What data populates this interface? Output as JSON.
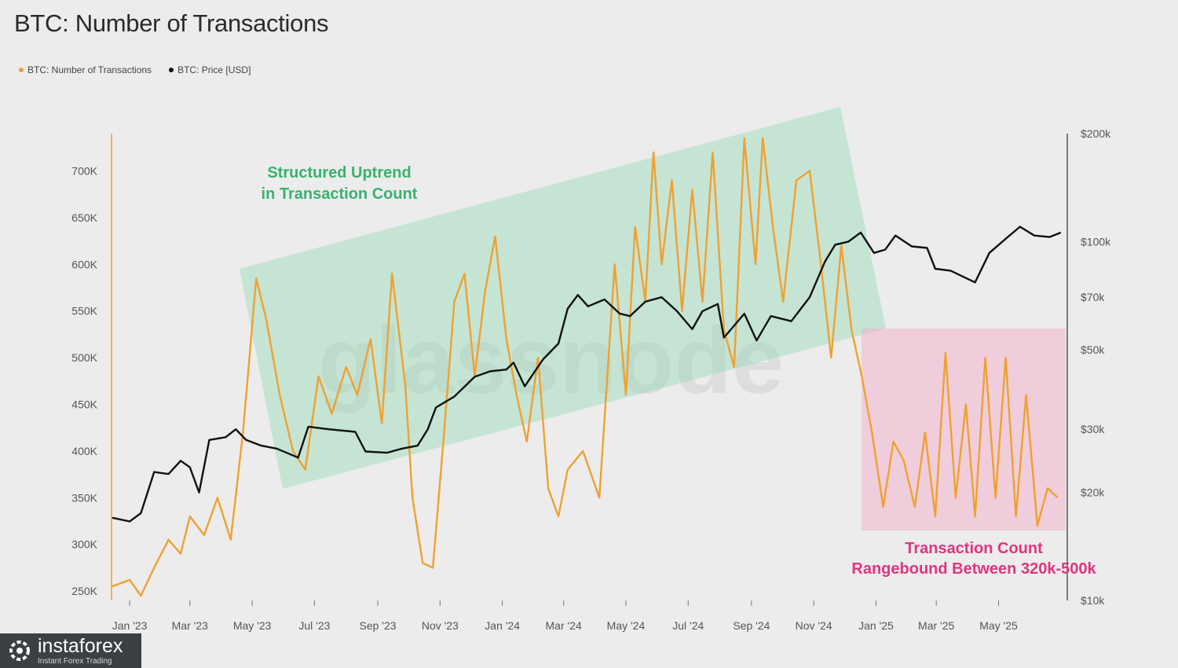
{
  "title": "BTC: Number of Transactions",
  "legend": [
    {
      "label": "BTC: Number of Transactions",
      "color": "#f0a030"
    },
    {
      "label": "BTC: Price [USD]",
      "color": "#111111"
    }
  ],
  "watermark": "glassnode",
  "brand": {
    "name": "instaforex",
    "tagline": "Instant Forex Trading",
    "icon": "gear-logo-icon"
  },
  "annotations": {
    "uptrend": [
      "Structured Uptrend",
      "in Transaction Count"
    ],
    "range": [
      "Transaction Count",
      "Rangebound Between 320k-500k"
    ]
  },
  "chart_data": {
    "type": "line",
    "x_ticks": [
      "Jan '23",
      "Mar '23",
      "May '23",
      "Jul '23",
      "Sep '23",
      "Nov '23",
      "Jan '24",
      "Mar '24",
      "May '24",
      "Jul '24",
      "Sep '24",
      "Nov '24",
      "Jan '25",
      "Mar '25",
      "May '25"
    ],
    "x_range": [
      "2022-12-15",
      "2025-07-05"
    ],
    "left_axis": {
      "ticks": [
        "250K",
        "300K",
        "350K",
        "400K",
        "450K",
        "500K",
        "550K",
        "600K",
        "650K",
        "700K"
      ],
      "range": [
        240000,
        740000
      ]
    },
    "right_axis": {
      "scale": "log",
      "ticks": [
        "$10k",
        "$20k",
        "$30k",
        "$50k",
        "$70k",
        "$100k",
        "$200k"
      ],
      "range": [
        10000,
        200000
      ]
    },
    "series": [
      {
        "name": "BTC: Number of Transactions",
        "color": "#f0a030",
        "points": [
          [
            "2022-12-15",
            255000
          ],
          [
            "2023-01-01",
            262000
          ],
          [
            "2023-01-12",
            245000
          ],
          [
            "2023-01-25",
            275000
          ],
          [
            "2023-02-08",
            305000
          ],
          [
            "2023-02-20",
            290000
          ],
          [
            "2023-03-01",
            330000
          ],
          [
            "2023-03-15",
            310000
          ],
          [
            "2023-03-28",
            350000
          ],
          [
            "2023-04-10",
            305000
          ],
          [
            "2023-04-22",
            420000
          ],
          [
            "2023-05-05",
            585000
          ],
          [
            "2023-05-15",
            540000
          ],
          [
            "2023-05-28",
            460000
          ],
          [
            "2023-06-10",
            400000
          ],
          [
            "2023-06-22",
            380000
          ],
          [
            "2023-07-05",
            480000
          ],
          [
            "2023-07-18",
            440000
          ],
          [
            "2023-08-01",
            490000
          ],
          [
            "2023-08-12",
            460000
          ],
          [
            "2023-08-25",
            520000
          ],
          [
            "2023-09-05",
            430000
          ],
          [
            "2023-09-15",
            590000
          ],
          [
            "2023-09-28",
            470000
          ],
          [
            "2023-10-05",
            350000
          ],
          [
            "2023-10-15",
            280000
          ],
          [
            "2023-10-25",
            275000
          ],
          [
            "2023-11-05",
            420000
          ],
          [
            "2023-11-15",
            560000
          ],
          [
            "2023-11-25",
            590000
          ],
          [
            "2023-12-05",
            480000
          ],
          [
            "2023-12-15",
            570000
          ],
          [
            "2023-12-25",
            630000
          ],
          [
            "2024-01-05",
            520000
          ],
          [
            "2024-01-15",
            460000
          ],
          [
            "2024-01-25",
            410000
          ],
          [
            "2024-02-05",
            500000
          ],
          [
            "2024-02-15",
            360000
          ],
          [
            "2024-02-25",
            330000
          ],
          [
            "2024-03-05",
            380000
          ],
          [
            "2024-03-20",
            400000
          ],
          [
            "2024-04-05",
            350000
          ],
          [
            "2024-04-20",
            600000
          ],
          [
            "2024-05-01",
            460000
          ],
          [
            "2024-05-10",
            640000
          ],
          [
            "2024-05-20",
            560000
          ],
          [
            "2024-05-28",
            720000
          ],
          [
            "2024-06-05",
            600000
          ],
          [
            "2024-06-15",
            690000
          ],
          [
            "2024-06-25",
            550000
          ],
          [
            "2024-07-05",
            680000
          ],
          [
            "2024-07-15",
            560000
          ],
          [
            "2024-07-25",
            720000
          ],
          [
            "2024-08-05",
            530000
          ],
          [
            "2024-08-15",
            490000
          ],
          [
            "2024-08-25",
            735000
          ],
          [
            "2024-09-05",
            600000
          ],
          [
            "2024-09-12",
            735000
          ],
          [
            "2024-09-22",
            640000
          ],
          [
            "2024-10-02",
            560000
          ],
          [
            "2024-10-15",
            690000
          ],
          [
            "2024-10-28",
            700000
          ],
          [
            "2024-11-08",
            600000
          ],
          [
            "2024-11-18",
            500000
          ],
          [
            "2024-11-28",
            620000
          ],
          [
            "2024-12-08",
            530000
          ],
          [
            "2024-12-18",
            480000
          ],
          [
            "2024-12-28",
            420000
          ],
          [
            "2025-01-08",
            340000
          ],
          [
            "2025-01-18",
            410000
          ],
          [
            "2025-01-28",
            390000
          ],
          [
            "2025-02-08",
            340000
          ],
          [
            "2025-02-18",
            420000
          ],
          [
            "2025-02-28",
            330000
          ],
          [
            "2025-03-10",
            505000
          ],
          [
            "2025-03-20",
            350000
          ],
          [
            "2025-03-30",
            450000
          ],
          [
            "2025-04-08",
            330000
          ],
          [
            "2025-04-18",
            500000
          ],
          [
            "2025-04-28",
            350000
          ],
          [
            "2025-05-08",
            500000
          ],
          [
            "2025-05-18",
            330000
          ],
          [
            "2025-05-28",
            460000
          ],
          [
            "2025-06-08",
            320000
          ],
          [
            "2025-06-18",
            360000
          ],
          [
            "2025-06-28",
            350000
          ]
        ]
      },
      {
        "name": "BTC: Price [USD]",
        "color": "#111111",
        "points": [
          [
            "2022-12-15",
            17000
          ],
          [
            "2023-01-01",
            16600
          ],
          [
            "2023-01-12",
            17500
          ],
          [
            "2023-01-25",
            22800
          ],
          [
            "2023-02-08",
            22500
          ],
          [
            "2023-02-20",
            24500
          ],
          [
            "2023-03-01",
            23500
          ],
          [
            "2023-03-10",
            20000
          ],
          [
            "2023-03-20",
            28000
          ],
          [
            "2023-04-05",
            28500
          ],
          [
            "2023-04-15",
            30000
          ],
          [
            "2023-04-25",
            28000
          ],
          [
            "2023-05-10",
            27000
          ],
          [
            "2023-05-25",
            26500
          ],
          [
            "2023-06-15",
            25000
          ],
          [
            "2023-06-25",
            30500
          ],
          [
            "2023-07-15",
            30000
          ],
          [
            "2023-08-10",
            29500
          ],
          [
            "2023-08-20",
            26000
          ],
          [
            "2023-09-10",
            25800
          ],
          [
            "2023-09-25",
            26500
          ],
          [
            "2023-10-10",
            27000
          ],
          [
            "2023-10-20",
            30000
          ],
          [
            "2023-10-28",
            34500
          ],
          [
            "2023-11-15",
            37000
          ],
          [
            "2023-12-05",
            42000
          ],
          [
            "2023-12-20",
            43500
          ],
          [
            "2024-01-05",
            44000
          ],
          [
            "2024-01-12",
            46000
          ],
          [
            "2024-01-23",
            39500
          ],
          [
            "2024-02-10",
            47000
          ],
          [
            "2024-02-25",
            52000
          ],
          [
            "2024-03-05",
            65000
          ],
          [
            "2024-03-15",
            71000
          ],
          [
            "2024-03-25",
            66000
          ],
          [
            "2024-04-10",
            69000
          ],
          [
            "2024-04-25",
            63000
          ],
          [
            "2024-05-05",
            62000
          ],
          [
            "2024-05-20",
            68000
          ],
          [
            "2024-06-05",
            70000
          ],
          [
            "2024-06-20",
            64000
          ],
          [
            "2024-07-05",
            57000
          ],
          [
            "2024-07-15",
            64000
          ],
          [
            "2024-07-30",
            67000
          ],
          [
            "2024-08-05",
            54000
          ],
          [
            "2024-08-25",
            63000
          ],
          [
            "2024-09-06",
            53000
          ],
          [
            "2024-09-20",
            62000
          ],
          [
            "2024-10-10",
            60000
          ],
          [
            "2024-10-28",
            70000
          ],
          [
            "2024-11-12",
            88000
          ],
          [
            "2024-11-22",
            98000
          ],
          [
            "2024-12-05",
            100000
          ],
          [
            "2024-12-17",
            106000
          ],
          [
            "2024-12-30",
            93000
          ],
          [
            "2025-01-10",
            95000
          ],
          [
            "2025-01-20",
            104000
          ],
          [
            "2025-02-05",
            97000
          ],
          [
            "2025-02-20",
            96000
          ],
          [
            "2025-02-28",
            84000
          ],
          [
            "2025-03-15",
            83000
          ],
          [
            "2025-04-08",
            77000
          ],
          [
            "2025-04-22",
            93000
          ],
          [
            "2025-05-10",
            103000
          ],
          [
            "2025-05-22",
            110000
          ],
          [
            "2025-06-05",
            104000
          ],
          [
            "2025-06-20",
            103000
          ],
          [
            "2025-07-01",
            106000
          ]
        ]
      }
    ]
  }
}
